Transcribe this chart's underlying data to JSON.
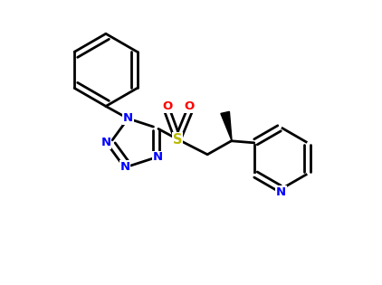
{
  "bg_color": "#ffffff",
  "bond_color": "#000000",
  "bond_width": 2.0,
  "atom_colors": {
    "N": "#0000ff",
    "S": "#b8b800",
    "O": "#ff0000",
    "C": "#000000"
  },
  "figsize": [
    4.22,
    3.15
  ],
  "dpi": 100,
  "xlim": [
    0.0,
    1.0
  ],
  "ylim": [
    0.05,
    0.95
  ]
}
